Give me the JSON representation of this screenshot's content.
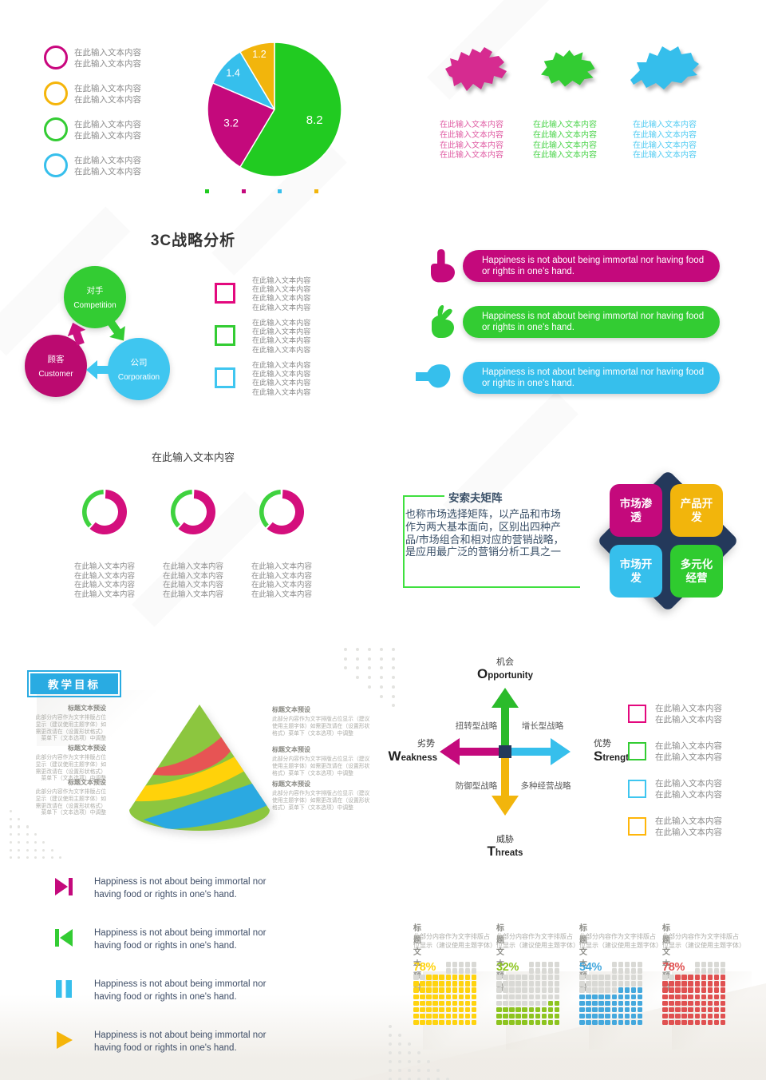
{
  "page": {
    "background": "#FFFFFF"
  },
  "colors": {
    "magenta": "#C4097C",
    "green": "#2FCB2F",
    "cyan": "#36BFEC",
    "yellow": "#F2B50C",
    "navy": "#24395B",
    "slate_text": "#3E4D66",
    "gray_text": "#8C8C8C",
    "light_gray_text": "#ADADA8",
    "banner_blue": "#29ABE2",
    "accent_green_line": "#3FE03F"
  },
  "chart_data": [
    {
      "type": "pie",
      "values": [
        8.2,
        3.2,
        1.4,
        1.2
      ],
      "labels": [
        "8.2",
        "3.2",
        "1.4",
        "1.2"
      ],
      "colors": [
        "#21CB21",
        "#C4097C",
        "#36BFEC",
        "#F2B50C"
      ],
      "start_angle_deg": 0,
      "clockwise": true,
      "legend": [
        {
          "color": "#C9067E",
          "lines": [
            "在此输入文本内容",
            "在此输入文本内容"
          ]
        },
        {
          "color": "#F5B50A",
          "lines": [
            "在此输入文本内容",
            "在此输入文本内容"
          ]
        },
        {
          "color": "#33CC33",
          "lines": [
            "在此输入文本内容",
            "在此输入文本内容"
          ]
        },
        {
          "color": "#36BFEC",
          "lines": [
            "在此输入文本内容",
            "在此输入文本内容"
          ]
        }
      ],
      "mini_legend_colors": [
        "#21CB21",
        "#C4097C",
        "#36BFEC",
        "#F2B50C"
      ]
    },
    {
      "type": "donut",
      "title": "在此输入文本内容",
      "items": [
        {
          "values": [
            62,
            38
          ],
          "colors": [
            "#D40F7D",
            "#3FD23F"
          ],
          "caption_lines": [
            "在此输入文本内容",
            "在此输入文本内容",
            "在此输入文本内容",
            "在此输入文本内容"
          ]
        },
        {
          "values": [
            62,
            38
          ],
          "colors": [
            "#D40F7D",
            "#3FD23F"
          ],
          "caption_lines": [
            "在此输入文本内容",
            "在此输入文本内容",
            "在此输入文本内容",
            "在此输入文本内容"
          ]
        },
        {
          "values": [
            62,
            38
          ],
          "colors": [
            "#D40F7D",
            "#3FD23F"
          ],
          "caption_lines": [
            "在此输入文本内容",
            "在此输入文本内容",
            "在此输入文本内容",
            "在此输入文本内容"
          ]
        }
      ]
    },
    {
      "type": "waffle",
      "empty_color": "#D9D9D5",
      "items": [
        {
          "title": "标题文本预设",
          "body": "此部分内容作为文字排版占位显示（建议使用主题字体）",
          "percent": 78,
          "value_label": "78%",
          "color": "#FFD30E"
        },
        {
          "title": "标题文本预设",
          "body": "此部分内容作为文字排版占位显示（建议使用主题字体）",
          "percent": 32,
          "value_label": "32%",
          "color": "#8DC41F"
        },
        {
          "title": "标题文本预设",
          "body": "此部分内容作为文字排版占位显示（建议使用主题字体）",
          "percent": 54,
          "value_label": "54%",
          "color": "#44A8DD"
        },
        {
          "title": "标题文本预设",
          "body": "此部分内容作为文字排版占位显示（建议使用主题字体）",
          "percent": 78,
          "value_label": "78%",
          "color": "#E05151"
        }
      ]
    }
  ],
  "maps": {
    "items": [
      {
        "name": "map-pink",
        "color": "#D62B90",
        "text_color": "#E05FA5",
        "lines": [
          "在此输入文本内容",
          "在此输入文本内容",
          "在此输入文本内容",
          "在此输入文本内容"
        ]
      },
      {
        "name": "map-green",
        "color": "#33CC33",
        "text_color": "#4CD44C",
        "lines": [
          "在此输入文本内容",
          "在此输入文本内容",
          "在此输入文本内容",
          "在此输入文本内容"
        ]
      },
      {
        "name": "map-blue",
        "color": "#35BEEB",
        "text_color": "#53CCF2",
        "lines": [
          "在此输入文本内容",
          "在此输入文本内容",
          "在此输入文本内容",
          "在此输入文本内容"
        ]
      }
    ]
  },
  "c3": {
    "title": "3C战略分析",
    "circles": [
      {
        "zh": "对手",
        "en": "Competition",
        "color": "#33CC33"
      },
      {
        "zh": "顾客",
        "en": "Customer",
        "color": "#BB0A70"
      },
      {
        "zh": "公司",
        "en": "Corporation",
        "color": "#3FC6F0"
      }
    ],
    "checkbox_groups": [
      {
        "color": "#E3097E",
        "lines": [
          "在此输入文本内容",
          "在此输入文本内容",
          "在此输入文本内容",
          "在此输入文本内容"
        ]
      },
      {
        "color": "#33CC33",
        "lines": [
          "在此输入文本内容",
          "在此输入文本内容",
          "在此输入文本内容",
          "在此输入文本内容"
        ]
      },
      {
        "color": "#3FC6F0",
        "lines": [
          "在此输入文本内容",
          "在此输入文本内容",
          "在此输入文本内容",
          "在此输入文本内容"
        ]
      }
    ]
  },
  "banners": {
    "items": [
      {
        "icon": "finger-up-icon",
        "color": "#C4097C",
        "text": "Happiness is not about being immortal nor having food or rights in one's hand."
      },
      {
        "icon": "hand-pinch-icon",
        "color": "#33CC33",
        "text": "Happiness is not about being immortal nor having food or rights in one's hand."
      },
      {
        "icon": "hand-hold-icon",
        "color": "#36BFEC",
        "text": "Happiness is not about being immortal nor having food or rights in one's hand."
      }
    ]
  },
  "ansoff": {
    "title": "安索夫矩阵",
    "body": "也称市场选择矩阵，以产品和市场作为两大基本面向，区别出四种产品/市场组合和相对应的营销战略，是应用最广泛的营销分析工具之一",
    "quadrants": [
      {
        "label": "市场渗透",
        "color": "#C4097C"
      },
      {
        "label": "产品开发",
        "color": "#F2B50C"
      },
      {
        "label": "市场开发",
        "color": "#36BFEC"
      },
      {
        "label": "多元化经营",
        "color": "#2FCB2F"
      }
    ],
    "diamond_color": "#24395B"
  },
  "teaching": {
    "banner": "教学目标",
    "banner_color": "#29ABE2",
    "blocks_left": [
      {
        "title": "标题文本预设",
        "body": "此部分内容作为文字排版占位显示（建议使用主题字体）如需更改请在（设置形状格式）菜单下（文本选项）中调整"
      },
      {
        "title": "标题文本预设",
        "body": "此部分内容作为文字排版占位显示（建议使用主题字体）如需更改请在（设置形状格式）菜单下（文本选项）中调整"
      },
      {
        "title": "标题文本预设",
        "body": "此部分内容作为文字排版占位显示（建议使用主题字体）如需更改请在（设置形状格式）菜单下（文本选项）中调整"
      }
    ],
    "blocks_right": [
      {
        "title": "标题文本预设",
        "body": "此部分内容作为文字排版占位显示（建议使用主题字体）如需更改请在（设置形状格式）菜单下（文本选项）中调整"
      },
      {
        "title": "标题文本预设",
        "body": "此部分内容作为文字排版占位显示（建议使用主题字体）如需更改请在（设置形状格式）菜单下（文本选项）中调整"
      },
      {
        "title": "标题文本预设",
        "body": "此部分内容作为文字排版占位显示（建议使用主题字体）如需更改请在（设置形状格式）菜单下（文本选项）中调整"
      }
    ],
    "cone_colors": {
      "green": "#8CC63F",
      "red": "#E75454",
      "yellow": "#FFD20A",
      "blue": "#2BA9E1"
    }
  },
  "swot": {
    "top": {
      "zh": "机会",
      "en": "Opportunity",
      "color": "#2BBB2B"
    },
    "right": {
      "zh": "优势",
      "en": "Strength",
      "color": "#36BFEC"
    },
    "left": {
      "zh": "劣势",
      "en": "Weakness",
      "color": "#C4097C"
    },
    "bottom": {
      "zh": "威胁",
      "en": "Threats",
      "color": "#F2B50C"
    },
    "strategies": {
      "top_left": "扭转型战略",
      "top_right": "增长型战略",
      "bottom_left": "防御型战略",
      "bottom_right": "多种经营战略"
    },
    "center_color": "#24395B"
  },
  "checklist": {
    "items": [
      {
        "color": "#E3097E",
        "lines": [
          "在此输入文本内容",
          "在此输入文本内容"
        ]
      },
      {
        "color": "#33CC33",
        "lines": [
          "在此输入文本内容",
          "在此输入文本内容"
        ]
      },
      {
        "color": "#3FC6F0",
        "lines": [
          "在此输入文本内容",
          "在此输入文本内容"
        ]
      },
      {
        "color": "#FFB60A",
        "lines": [
          "在此输入文本内容",
          "在此输入文本内容"
        ]
      }
    ]
  },
  "media": {
    "items": [
      {
        "icon": "next-track-icon",
        "color": "#C4097C",
        "text": "Happiness is not about being immortal nor having food or rights in one's hand."
      },
      {
        "icon": "previous-track-icon",
        "color": "#33CC33",
        "text": "Happiness is not about being immortal nor having food or rights in one's hand."
      },
      {
        "icon": "pause-icon",
        "color": "#36BFEC",
        "text": "Happiness is not about being immortal nor having food or rights in one's hand."
      },
      {
        "icon": "play-icon",
        "color": "#F5B50A",
        "text": "Happiness is not about being immortal nor having food or rights in one's hand."
      }
    ]
  }
}
